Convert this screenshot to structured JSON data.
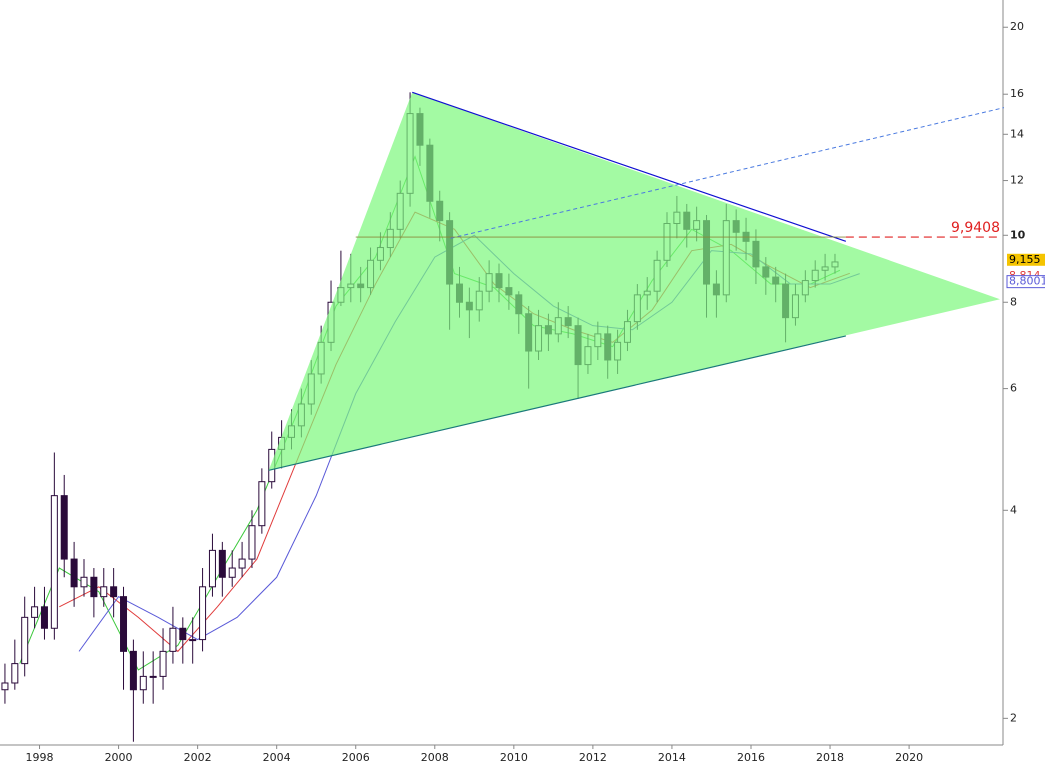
{
  "chart_data": {
    "type": "candlestick",
    "log_scale": true,
    "xlim": [
      1997,
      2022.3
    ],
    "ylim": [
      1.83,
      21.9
    ],
    "yticks": [
      2,
      4,
      6,
      8,
      10,
      12,
      14,
      16,
      20
    ],
    "xticks": [
      1998,
      2000,
      2002,
      2004,
      2006,
      2008,
      2010,
      2012,
      2014,
      2016,
      2018,
      2020
    ],
    "candle_start": 1997,
    "candle_step": 0.25,
    "candle_color": "#2a0a3a",
    "open": [
      2.2,
      2.25,
      2.4,
      2.8,
      2.9,
      2.7,
      4.2,
      3.4,
      3.1,
      3.2,
      3.0,
      3.1,
      3.0,
      2.5,
      2.2,
      2.3,
      2.3,
      2.5,
      2.7,
      2.6,
      2.6,
      3.1,
      3.5,
      3.2,
      3.3,
      3.4,
      3.8,
      4.4,
      4.9,
      5.1,
      5.3,
      5.7,
      6.3,
      7.0,
      8.0,
      8.4,
      8.5,
      8.4,
      9.2,
      9.6,
      10.2,
      11.5,
      15.0,
      13.5,
      11.2,
      10.5,
      8.5,
      8.0,
      7.8,
      8.3,
      8.8,
      8.4,
      8.2,
      7.7,
      6.8,
      7.4,
      7.2,
      7.6,
      7.4,
      6.5,
      6.9,
      7.2,
      6.6,
      7.0,
      7.5,
      8.2,
      8.3,
      9.2,
      10.4,
      10.8,
      10.2,
      10.5,
      8.5,
      8.2,
      10.5,
      10.1,
      9.8,
      9.0,
      8.7,
      8.5,
      7.6,
      8.2,
      8.6,
      8.9,
      9.0
    ],
    "high": [
      2.4,
      2.6,
      3.0,
      3.1,
      3.1,
      4.85,
      4.5,
      3.6,
      3.4,
      3.3,
      3.3,
      3.3,
      3.1,
      2.6,
      2.5,
      2.5,
      2.7,
      2.9,
      2.8,
      2.8,
      3.3,
      3.7,
      3.6,
      3.5,
      3.6,
      4.0,
      4.6,
      5.2,
      5.4,
      5.6,
      6.0,
      6.6,
      7.4,
      8.6,
      9.5,
      9.4,
      9.0,
      9.6,
      10.1,
      10.8,
      12.0,
      16.1,
      15.3,
      13.8,
      11.6,
      10.8,
      9.0,
      8.4,
      8.7,
      9.2,
      9.1,
      8.8,
      8.3,
      7.9,
      7.8,
      7.7,
      8.0,
      7.9,
      7.6,
      7.2,
      7.5,
      7.4,
      7.3,
      7.8,
      8.5,
      8.7,
      9.5,
      10.8,
      11.4,
      11.1,
      11.0,
      10.7,
      8.9,
      11.1,
      10.9,
      10.6,
      10.2,
      9.3,
      9.0,
      8.8,
      8.5,
      8.9,
      9.2,
      9.4,
      9.4
    ],
    "low": [
      2.1,
      2.2,
      2.3,
      2.7,
      2.6,
      2.6,
      3.2,
      2.9,
      3.0,
      2.8,
      2.9,
      2.8,
      2.2,
      1.85,
      2.1,
      2.1,
      2.2,
      2.4,
      2.4,
      2.4,
      2.5,
      3.0,
      3.0,
      3.1,
      3.2,
      3.3,
      3.7,
      4.3,
      4.6,
      4.9,
      5.1,
      5.5,
      6.1,
      6.8,
      7.9,
      8.0,
      8.0,
      8.2,
      8.9,
      9.3,
      9.9,
      11.0,
      12.6,
      10.6,
      9.8,
      7.3,
      7.6,
      7.1,
      7.5,
      8.0,
      8.0,
      7.8,
      7.2,
      6.0,
      6.6,
      6.8,
      7.0,
      7.1,
      5.8,
      6.3,
      6.6,
      6.2,
      6.3,
      6.8,
      7.3,
      7.8,
      8.0,
      9.0,
      9.9,
      9.6,
      9.8,
      7.6,
      7.6,
      8.0,
      9.5,
      9.2,
      8.5,
      8.2,
      8.0,
      7.0,
      7.4,
      8.0,
      8.4,
      8.6,
      8.8
    ],
    "close": [
      2.25,
      2.4,
      2.8,
      2.9,
      2.7,
      4.2,
      3.4,
      3.1,
      3.2,
      3.0,
      3.1,
      3.0,
      2.5,
      2.2,
      2.3,
      2.3,
      2.5,
      2.7,
      2.6,
      2.6,
      3.1,
      3.5,
      3.2,
      3.3,
      3.4,
      3.8,
      4.4,
      4.9,
      5.1,
      5.3,
      5.7,
      6.3,
      7.0,
      8.0,
      8.4,
      8.5,
      8.4,
      9.2,
      9.6,
      10.2,
      11.5,
      15.0,
      13.5,
      11.2,
      10.5,
      8.5,
      8.0,
      7.8,
      8.3,
      8.8,
      8.4,
      8.2,
      7.7,
      6.8,
      7.4,
      7.2,
      7.6,
      7.4,
      6.5,
      6.9,
      7.2,
      6.6,
      7.0,
      7.5,
      8.2,
      8.3,
      9.2,
      10.4,
      10.8,
      10.2,
      10.5,
      8.5,
      8.2,
      10.5,
      10.1,
      9.8,
      9.0,
      8.7,
      8.5,
      7.6,
      8.2,
      8.6,
      8.9,
      9.0,
      9.15
    ],
    "averages": [
      {
        "color": "#3cc83c",
        "x": [
          1997.5,
          1998.5,
          1999.5,
          2000.5,
          2001.5,
          2002.5,
          2003.5,
          2004.5,
          2005.5,
          2006.5,
          2007.5,
          2008.5,
          2009.5,
          2010.5,
          2011.5,
          2012.5,
          2013.5,
          2014.5,
          2015.5,
          2016.5,
          2017.5,
          2018.25
        ],
        "values": [
          2.4,
          3.3,
          3.05,
          2.35,
          2.55,
          3.2,
          4.0,
          5.5,
          7.9,
          9.3,
          13.0,
          8.8,
          8.4,
          7.4,
          7.2,
          6.9,
          8.6,
          10.2,
          9.5,
          8.5,
          8.5,
          8.9
        ]
      },
      {
        "color": "#e03c3c",
        "x": [
          1998.5,
          1999.5,
          2000.5,
          2001.5,
          2002.5,
          2003.5,
          2004.5,
          2005.5,
          2006.5,
          2007.5,
          2008.5,
          2009.5,
          2010.5,
          2011.5,
          2012.5,
          2013.5,
          2014.5,
          2015.5,
          2016.5,
          2017.5,
          2018.5
        ],
        "values": [
          2.9,
          3.1,
          2.8,
          2.5,
          2.9,
          3.4,
          4.7,
          6.5,
          8.5,
          10.8,
          10.2,
          8.5,
          7.7,
          7.3,
          7.0,
          7.8,
          9.5,
          9.7,
          9.0,
          8.4,
          8.81
        ]
      },
      {
        "color": "#5a5ad8",
        "x": [
          1999,
          2000,
          2001,
          2002,
          2003,
          2004,
          2005,
          2006,
          2007,
          2008,
          2009,
          2010,
          2011,
          2012,
          2013,
          2014,
          2015,
          2016,
          2017,
          2018,
          2018.75
        ],
        "values": [
          2.5,
          3.0,
          2.8,
          2.6,
          2.8,
          3.2,
          4.2,
          5.9,
          7.5,
          9.3,
          10.0,
          8.8,
          7.9,
          7.4,
          7.3,
          8.0,
          9.5,
          9.4,
          8.5,
          8.5,
          8.8
        ]
      }
    ],
    "triangle": {
      "color": "#7cf87c",
      "x": [
        2003.8,
        2007.43,
        2022.3
      ],
      "y": [
        4.57,
        16.1,
        8.08
      ]
    },
    "resistance": {
      "color": "#1010d0",
      "x": [
        2007.43,
        2018.4
      ],
      "y": [
        16.1,
        9.8
      ]
    },
    "support": {
      "color": "#1a7a7a",
      "x": [
        2003.8,
        2018.4
      ],
      "y": [
        4.57,
        7.15
      ]
    },
    "projection": {
      "color": "#4a7ae0",
      "x": [
        2008.4,
        2022.4
      ],
      "y": [
        9.9,
        15.3
      ]
    },
    "level": {
      "value": 9.9408,
      "label": "9,9408",
      "color": "#e02020",
      "x": [
        2006,
        2018.4,
        2022.3
      ]
    },
    "price_labels": [
      {
        "value": 9.155,
        "label": "9,155",
        "color": "#f5c400"
      },
      {
        "value": 8.814,
        "label": "8,814",
        "color": "#e03c3c"
      },
      {
        "value": 8.8001,
        "label": "8,8001",
        "color": "#5a5ad8"
      }
    ]
  }
}
